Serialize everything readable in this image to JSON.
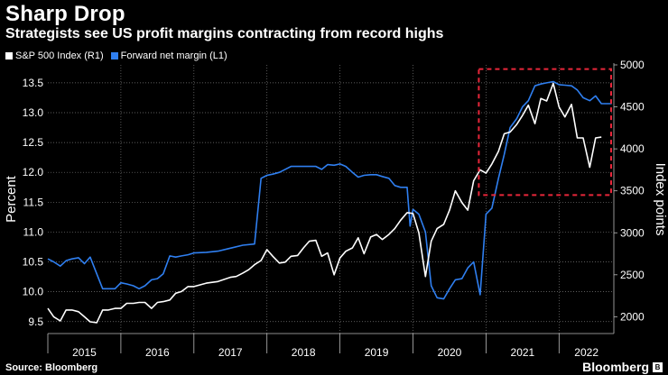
{
  "header": {
    "title": "Sharp Drop",
    "subtitle": "Strategists see US profit margins contracting from record highs"
  },
  "legend": [
    {
      "label": "S&P 500 Index (R1)",
      "color": "#ffffff"
    },
    {
      "label": "Forward net margin (L1)",
      "color": "#2f7ff0"
    }
  ],
  "footer": {
    "source": "Source: Bloomberg",
    "brand": "Bloomberg"
  },
  "colors": {
    "spx": "#ffffff",
    "margin": "#2f7ff0",
    "highlight": "#e8263a",
    "grid": "#7a7a7a"
  },
  "chart_data": {
    "type": "line",
    "left_axis": {
      "label": "Percent",
      "range": [
        9.3,
        13.8
      ],
      "ticks": [
        9.5,
        10.0,
        10.5,
        11.0,
        11.5,
        12.0,
        12.5,
        13.0,
        13.5
      ]
    },
    "right_axis": {
      "label": "Index points",
      "range": [
        1800,
        5000
      ],
      "ticks": [
        2000,
        2500,
        3000,
        3500,
        4000,
        4500,
        5000
      ]
    },
    "x_range": [
      2015.0,
      2022.75
    ],
    "x_ticks": [
      {
        "label": "2015",
        "year": 2015
      },
      {
        "label": "2016",
        "year": 2016
      },
      {
        "label": "2017",
        "year": 2017
      },
      {
        "label": "2018",
        "year": 2018
      },
      {
        "label": "2019",
        "year": 2019
      },
      {
        "label": "2020",
        "year": 2020
      },
      {
        "label": "2021",
        "year": 2021
      },
      {
        "label": "2022",
        "year": 2022
      }
    ],
    "grid": true,
    "highlight_box": {
      "x": [
        2021.0,
        2022.75
      ],
      "y_right": [
        3450,
        4950
      ]
    },
    "series": [
      {
        "name": "Forward net margin (L1)",
        "axis": "left",
        "points": [
          [
            2015.0,
            10.55
          ],
          [
            2015.08,
            10.5
          ],
          [
            2015.17,
            10.43
          ],
          [
            2015.25,
            10.52
          ],
          [
            2015.33,
            10.55
          ],
          [
            2015.42,
            10.57
          ],
          [
            2015.5,
            10.47
          ],
          [
            2015.58,
            10.58
          ],
          [
            2015.67,
            10.3
          ],
          [
            2015.75,
            10.05
          ],
          [
            2015.83,
            10.05
          ],
          [
            2015.92,
            10.05
          ],
          [
            2016.0,
            10.15
          ],
          [
            2016.08,
            10.13
          ],
          [
            2016.17,
            10.1
          ],
          [
            2016.25,
            10.05
          ],
          [
            2016.33,
            10.1
          ],
          [
            2016.42,
            10.2
          ],
          [
            2016.5,
            10.22
          ],
          [
            2016.58,
            10.3
          ],
          [
            2016.67,
            10.6
          ],
          [
            2016.75,
            10.58
          ],
          [
            2016.83,
            10.6
          ],
          [
            2016.92,
            10.62
          ],
          [
            2017.0,
            10.65
          ],
          [
            2017.17,
            10.66
          ],
          [
            2017.33,
            10.68
          ],
          [
            2017.5,
            10.73
          ],
          [
            2017.67,
            10.78
          ],
          [
            2017.83,
            10.8
          ],
          [
            2017.92,
            11.9
          ],
          [
            2018.0,
            11.95
          ],
          [
            2018.08,
            11.97
          ],
          [
            2018.17,
            12.0
          ],
          [
            2018.25,
            12.05
          ],
          [
            2018.33,
            12.1
          ],
          [
            2018.5,
            12.1
          ],
          [
            2018.67,
            12.1
          ],
          [
            2018.75,
            12.05
          ],
          [
            2018.83,
            12.13
          ],
          [
            2018.92,
            12.12
          ],
          [
            2019.0,
            12.14
          ],
          [
            2019.08,
            12.1
          ],
          [
            2019.17,
            12.0
          ],
          [
            2019.25,
            11.92
          ],
          [
            2019.33,
            11.95
          ],
          [
            2019.42,
            11.96
          ],
          [
            2019.5,
            11.96
          ],
          [
            2019.58,
            11.93
          ],
          [
            2019.67,
            11.9
          ],
          [
            2019.75,
            11.78
          ],
          [
            2019.83,
            11.75
          ],
          [
            2019.92,
            11.75
          ],
          [
            2019.96,
            11.1
          ],
          [
            2020.0,
            11.38
          ],
          [
            2020.08,
            11.3
          ],
          [
            2020.17,
            11.0
          ],
          [
            2020.25,
            10.1
          ],
          [
            2020.33,
            9.9
          ],
          [
            2020.42,
            9.88
          ],
          [
            2020.5,
            10.05
          ],
          [
            2020.58,
            10.2
          ],
          [
            2020.67,
            10.22
          ],
          [
            2020.75,
            10.4
          ],
          [
            2020.83,
            10.5
          ],
          [
            2020.92,
            9.95
          ],
          [
            2021.0,
            11.3
          ],
          [
            2021.08,
            11.4
          ],
          [
            2021.17,
            11.9
          ],
          [
            2021.25,
            12.3
          ],
          [
            2021.33,
            12.75
          ],
          [
            2021.42,
            12.9
          ],
          [
            2021.5,
            13.1
          ],
          [
            2021.58,
            13.2
          ],
          [
            2021.67,
            13.45
          ],
          [
            2021.75,
            13.48
          ],
          [
            2021.83,
            13.5
          ],
          [
            2021.92,
            13.52
          ],
          [
            2022.0,
            13.47
          ],
          [
            2022.08,
            13.46
          ],
          [
            2022.17,
            13.45
          ],
          [
            2022.25,
            13.38
          ],
          [
            2022.33,
            13.25
          ],
          [
            2022.42,
            13.2
          ],
          [
            2022.5,
            13.28
          ],
          [
            2022.58,
            13.15
          ],
          [
            2022.67,
            13.15
          ],
          [
            2022.72,
            13.15
          ]
        ]
      },
      {
        "name": "S&P 500 Index (R1)",
        "axis": "right",
        "points": [
          [
            2015.0,
            2100
          ],
          [
            2015.08,
            2000
          ],
          [
            2015.17,
            1950
          ],
          [
            2015.25,
            2080
          ],
          [
            2015.33,
            2080
          ],
          [
            2015.42,
            2060
          ],
          [
            2015.5,
            2000
          ],
          [
            2015.58,
            1940
          ],
          [
            2015.67,
            1930
          ],
          [
            2015.75,
            2080
          ],
          [
            2015.83,
            2080
          ],
          [
            2015.92,
            2100
          ],
          [
            2016.0,
            2100
          ],
          [
            2016.08,
            2160
          ],
          [
            2016.17,
            2160
          ],
          [
            2016.25,
            2170
          ],
          [
            2016.33,
            2170
          ],
          [
            2016.42,
            2100
          ],
          [
            2016.5,
            2170
          ],
          [
            2016.58,
            2180
          ],
          [
            2016.67,
            2200
          ],
          [
            2016.75,
            2280
          ],
          [
            2016.83,
            2300
          ],
          [
            2016.92,
            2360
          ],
          [
            2017.0,
            2360
          ],
          [
            2017.17,
            2400
          ],
          [
            2017.33,
            2420
          ],
          [
            2017.5,
            2470
          ],
          [
            2017.58,
            2480
          ],
          [
            2017.67,
            2520
          ],
          [
            2017.75,
            2560
          ],
          [
            2017.83,
            2620
          ],
          [
            2017.92,
            2670
          ],
          [
            2018.0,
            2800
          ],
          [
            2018.08,
            2720
          ],
          [
            2018.17,
            2640
          ],
          [
            2018.25,
            2650
          ],
          [
            2018.33,
            2720
          ],
          [
            2018.42,
            2730
          ],
          [
            2018.5,
            2820
          ],
          [
            2018.58,
            2900
          ],
          [
            2018.67,
            2910
          ],
          [
            2018.75,
            2720
          ],
          [
            2018.83,
            2760
          ],
          [
            2018.92,
            2500
          ],
          [
            2019.0,
            2700
          ],
          [
            2019.08,
            2780
          ],
          [
            2019.17,
            2820
          ],
          [
            2019.25,
            2940
          ],
          [
            2019.33,
            2750
          ],
          [
            2019.42,
            2950
          ],
          [
            2019.5,
            2980
          ],
          [
            2019.58,
            2920
          ],
          [
            2019.67,
            2980
          ],
          [
            2019.75,
            3050
          ],
          [
            2019.83,
            3150
          ],
          [
            2019.92,
            3240
          ],
          [
            2020.0,
            3230
          ],
          [
            2020.08,
            3000
          ],
          [
            2020.17,
            2480
          ],
          [
            2020.25,
            2900
          ],
          [
            2020.33,
            3050
          ],
          [
            2020.42,
            3100
          ],
          [
            2020.5,
            3270
          ],
          [
            2020.58,
            3500
          ],
          [
            2020.67,
            3360
          ],
          [
            2020.75,
            3270
          ],
          [
            2020.83,
            3620
          ],
          [
            2020.92,
            3750
          ],
          [
            2021.0,
            3710
          ],
          [
            2021.08,
            3820
          ],
          [
            2021.17,
            3970
          ],
          [
            2021.25,
            4180
          ],
          [
            2021.33,
            4200
          ],
          [
            2021.42,
            4290
          ],
          [
            2021.5,
            4400
          ],
          [
            2021.58,
            4520
          ],
          [
            2021.67,
            4300
          ],
          [
            2021.75,
            4600
          ],
          [
            2021.83,
            4570
          ],
          [
            2021.92,
            4780
          ],
          [
            2022.0,
            4500
          ],
          [
            2022.08,
            4380
          ],
          [
            2022.17,
            4530
          ],
          [
            2022.25,
            4130
          ],
          [
            2022.33,
            4130
          ],
          [
            2022.42,
            3780
          ],
          [
            2022.5,
            4130
          ],
          [
            2022.58,
            4140
          ]
        ]
      }
    ]
  }
}
